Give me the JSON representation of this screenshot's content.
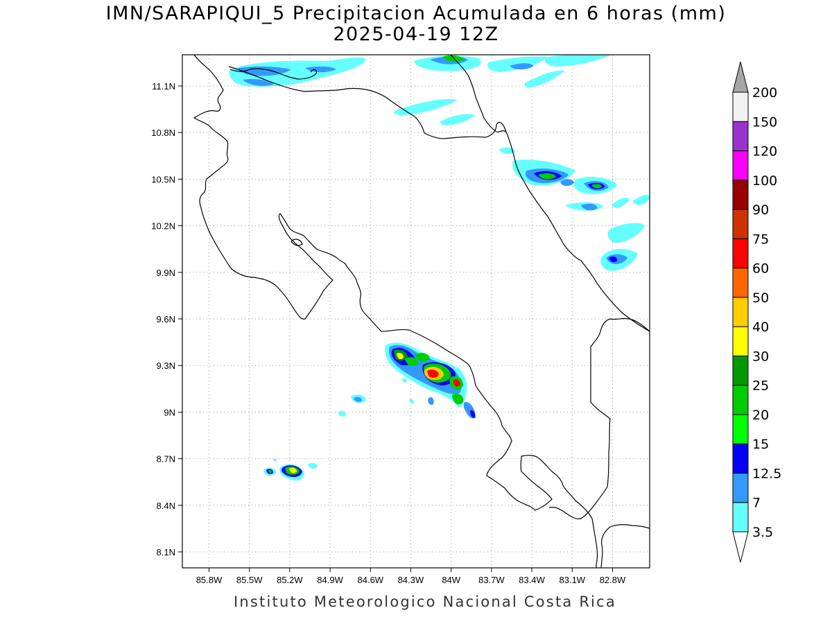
{
  "title": {
    "line1": "IMN/SARAPIQUI_5 Precipitacion Acumulada en 6 horas (mm)",
    "line2": "2025-04-19 12Z"
  },
  "footer": "Instituto Meteorologico Nacional Costa Rica",
  "map": {
    "lon_range": [
      -86.0,
      -83.0
    ],
    "lat_range": [
      8.0,
      11.3
    ],
    "lat_ticks": [
      "11.1N",
      "10.8N",
      "10.5N",
      "10.2N",
      "9.9N",
      "9.6N",
      "9.3N",
      "9N",
      "8.7N",
      "8.4N",
      "8.1N"
    ],
    "lon_ticks": [
      "85.8W",
      "85.5W",
      "85.2W",
      "84.9W",
      "84.6W",
      "84.3W",
      "84W",
      "83.7W",
      "83.4W",
      "83.1W",
      "82.8W"
    ],
    "grid": "dotted",
    "coastline_color": "#000000"
  },
  "colorbar": {
    "labels": [
      "3.5",
      "7",
      "12.5",
      "15",
      "20",
      "25",
      "30",
      "40",
      "50",
      "60",
      "75",
      "90",
      "100",
      "120",
      "150",
      "200"
    ],
    "colors": [
      "#66ffff",
      "#3399ff",
      "#0000ff",
      "#00ff00",
      "#00cc00",
      "#009900",
      "#ffff00",
      "#ffcc00",
      "#ff6600",
      "#ff0000",
      "#cc3300",
      "#990000",
      "#ff00ff",
      "#9933cc",
      "#f2f2f2"
    ],
    "over_color": "#a6a6a6",
    "under_color": "#ffffff"
  }
}
